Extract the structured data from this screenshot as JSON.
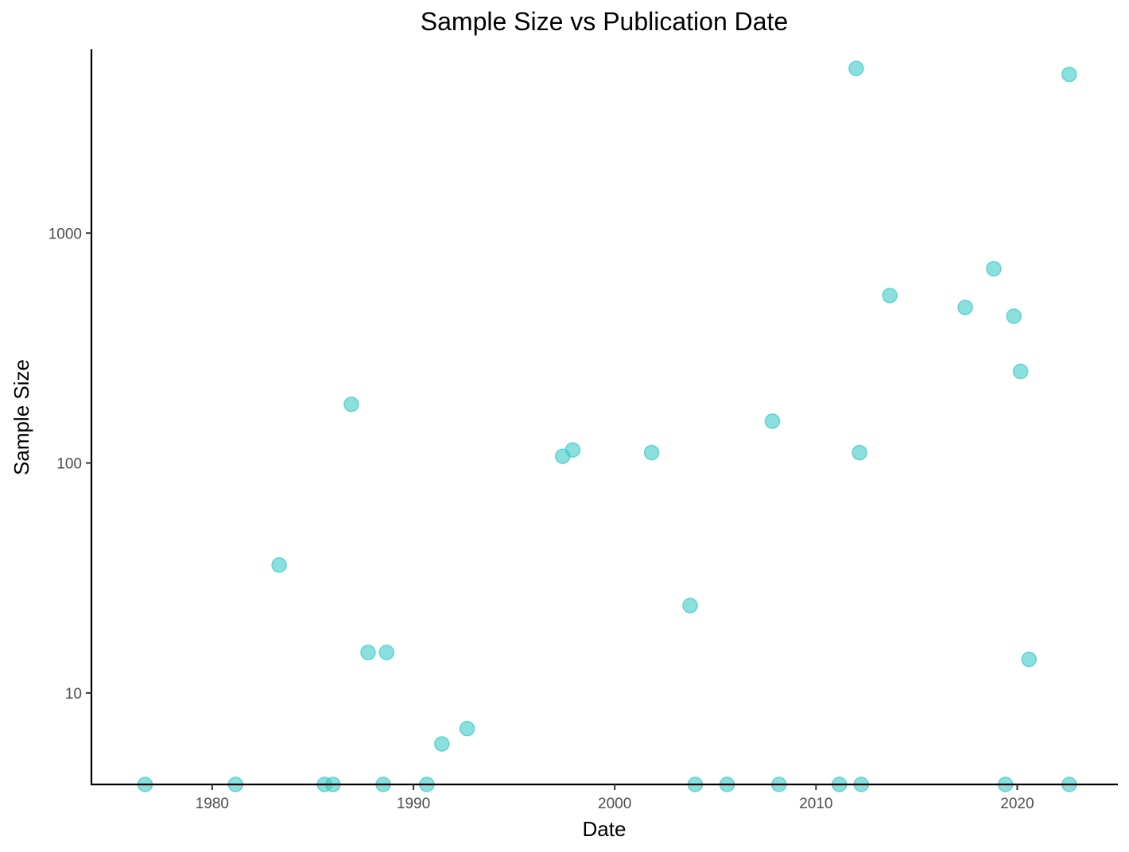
{
  "chart_data": {
    "type": "scatter",
    "title": "Sample Size vs Publication Date",
    "xlabel": "Date",
    "ylabel": "Sample Size",
    "x_scale": "time",
    "y_scale": "log10",
    "xlim": [
      "1974-01-01",
      "2024-12-31"
    ],
    "ylim": [
      4,
      6300
    ],
    "x_ticks": [
      "1980",
      "1990",
      "2000",
      "2010",
      "2020"
    ],
    "y_ticks": [
      "10",
      "100",
      "1000"
    ],
    "grid": false,
    "legend": "none",
    "point_color": "#3ECBC7",
    "series": [
      {
        "points": [
          {
            "x": "1976-09-01",
            "y": 4
          },
          {
            "x": "1981-03-01",
            "y": 4
          },
          {
            "x": "1983-05-01",
            "y": 36
          },
          {
            "x": "1985-08-01",
            "y": 4
          },
          {
            "x": "1986-01-01",
            "y": 4
          },
          {
            "x": "1986-12-01",
            "y": 180
          },
          {
            "x": "1987-10-01",
            "y": 15
          },
          {
            "x": "1988-07-01",
            "y": 4
          },
          {
            "x": "1988-09-01",
            "y": 15
          },
          {
            "x": "1990-09-01",
            "y": 4
          },
          {
            "x": "1991-06-01",
            "y": 6
          },
          {
            "x": "1992-09-01",
            "y": 7
          },
          {
            "x": "1997-06-01",
            "y": 107
          },
          {
            "x": "1997-12-01",
            "y": 114
          },
          {
            "x": "2001-11-01",
            "y": 111
          },
          {
            "x": "2003-10-01",
            "y": 24
          },
          {
            "x": "2004-01-01",
            "y": 4
          },
          {
            "x": "2005-08-01",
            "y": 4
          },
          {
            "x": "2007-11-01",
            "y": 152
          },
          {
            "x": "2008-03-01",
            "y": 4
          },
          {
            "x": "2011-03-01",
            "y": 4
          },
          {
            "x": "2012-01-01",
            "y": 5200
          },
          {
            "x": "2012-03-01",
            "y": 111
          },
          {
            "x": "2012-04-01",
            "y": 4
          },
          {
            "x": "2013-09-01",
            "y": 535
          },
          {
            "x": "2017-06-01",
            "y": 475
          },
          {
            "x": "2018-11-01",
            "y": 700
          },
          {
            "x": "2019-06-01",
            "y": 4
          },
          {
            "x": "2019-11-01",
            "y": 435
          },
          {
            "x": "2020-03-01",
            "y": 250
          },
          {
            "x": "2020-08-01",
            "y": 14
          },
          {
            "x": "2022-08-01",
            "y": 4900
          },
          {
            "x": "2022-08-01",
            "y": 4
          }
        ]
      }
    ]
  }
}
